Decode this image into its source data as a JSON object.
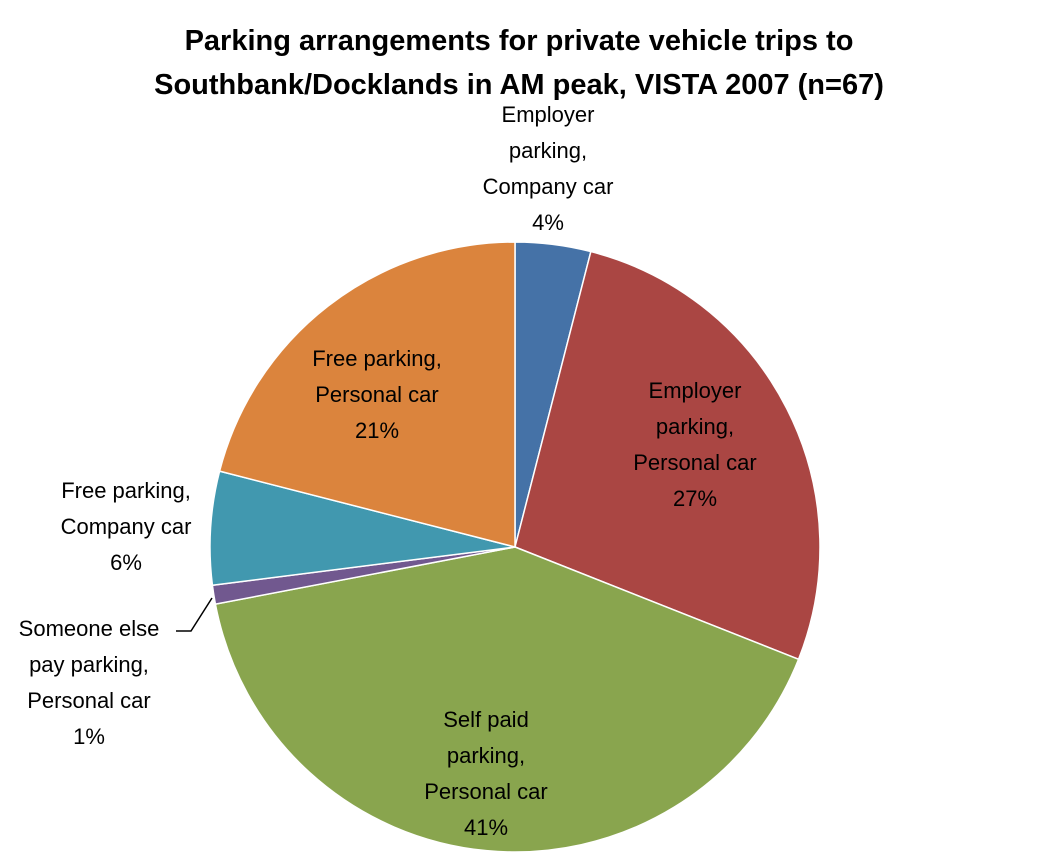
{
  "chart_data": {
    "type": "pie",
    "title": [
      "Parking arrangements for private vehicle trips to",
      "Southbank/Docklands in AM peak, VISTA 2007 (n=67)"
    ],
    "slices": [
      {
        "label": [
          "Employer",
          "parking,",
          "Company car"
        ],
        "value": 4,
        "value_label": "4%",
        "color": "#4572A7"
      },
      {
        "label": [
          "Employer",
          "parking,",
          "Personal car"
        ],
        "value": 27,
        "value_label": "27%",
        "color": "#AA4643"
      },
      {
        "label": [
          "Self paid",
          "parking,",
          "Personal car"
        ],
        "value": 41,
        "value_label": "41%",
        "color": "#89A54E"
      },
      {
        "label": [
          "Someone else",
          "pay parking,",
          "Personal car"
        ],
        "value": 1,
        "value_label": "1%",
        "color": "#71588F"
      },
      {
        "label": [
          "Free parking,",
          "Company car"
        ],
        "value": 6,
        "value_label": "6%",
        "color": "#4198AF"
      },
      {
        "label": [
          "Free parking,",
          "Personal car"
        ],
        "value": 21,
        "value_label": "21%",
        "color": "#DB843D"
      }
    ]
  }
}
